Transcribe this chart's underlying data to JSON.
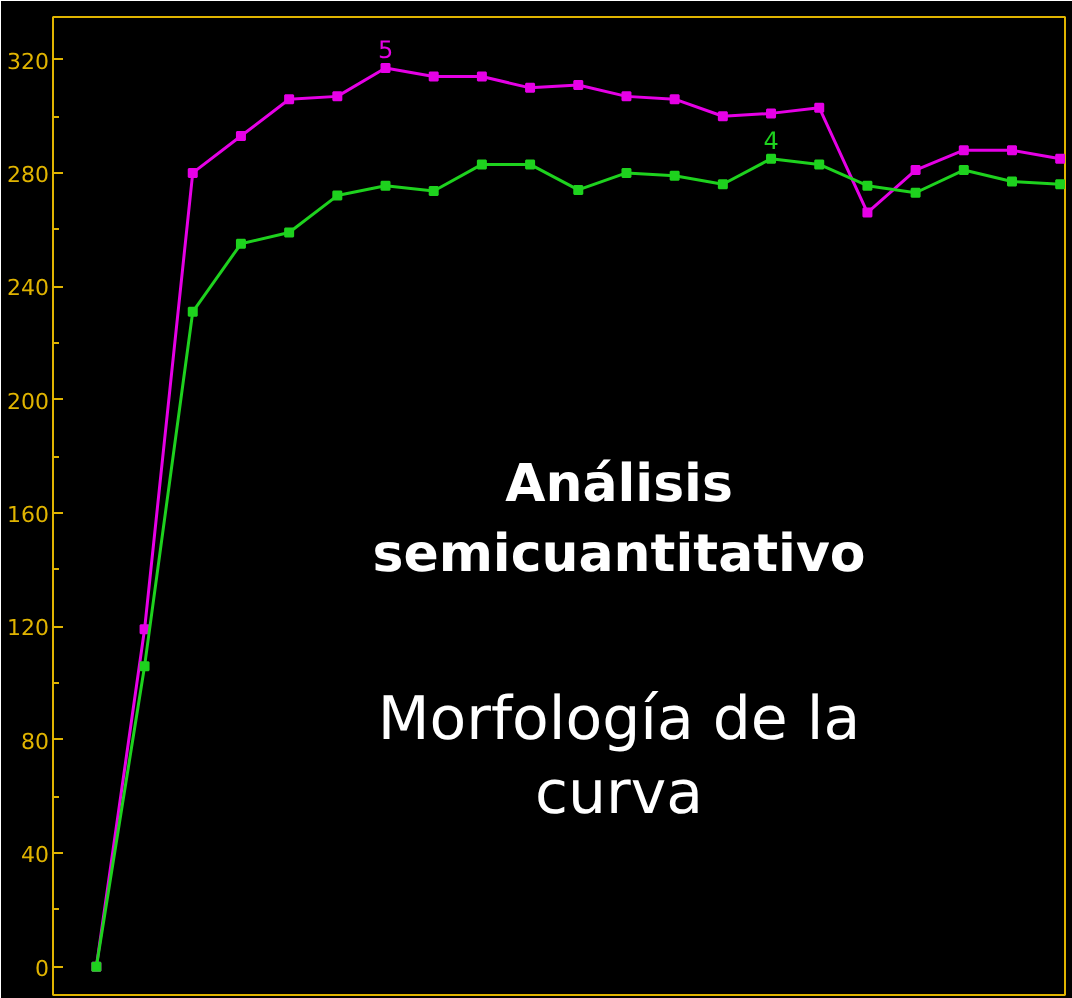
{
  "chart_data": {
    "type": "line",
    "categories": [
      null,
      null,
      null,
      null,
      null,
      null,
      null,
      null,
      null,
      null,
      null,
      null,
      null,
      null,
      null,
      null,
      null,
      null,
      null,
      null,
      null
    ],
    "series": [
      {
        "name": "5",
        "color": "#e600e6",
        "values": [
          0,
          119,
          280,
          293,
          306,
          307,
          317,
          314,
          314,
          310,
          311,
          307,
          306,
          300,
          301,
          303,
          266,
          281,
          288,
          288,
          285
        ]
      },
      {
        "name": "4",
        "color": "#1ed21e",
        "values": [
          0,
          106,
          231,
          255,
          259,
          272,
          275.5,
          273.6,
          283,
          283,
          274,
          280,
          279,
          276,
          285,
          283,
          275.5,
          273,
          281,
          277,
          276
        ]
      }
    ],
    "ylim": [
      -10,
      335
    ],
    "yticks": [
      0,
      40,
      80,
      120,
      160,
      200,
      240,
      280,
      320
    ],
    "tick_labels": "y",
    "grid": false,
    "legend": false,
    "marker": "square",
    "line_style": "solid",
    "annotations": [
      "Análisis",
      "semicuantitativo",
      "Morfología de la",
      "curva"
    ]
  }
}
